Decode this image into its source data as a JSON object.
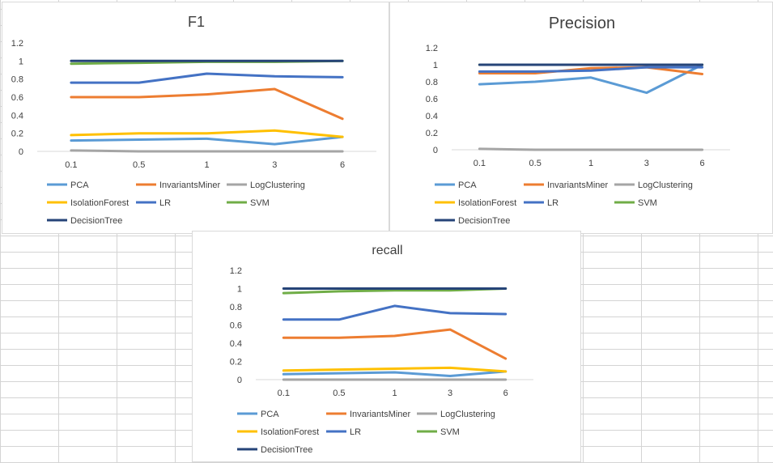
{
  "chart_data": [
    {
      "type": "line",
      "title": "F1",
      "categories": [
        "0.1",
        "0.5",
        "1",
        "3",
        "6"
      ],
      "ylim": [
        0,
        1.2
      ],
      "yticks": [
        "0",
        "0.2",
        "0.4",
        "0.6",
        "0.8",
        "1",
        "1.2"
      ],
      "grid": false,
      "legend_position": "bottom",
      "series": [
        {
          "name": "PCA",
          "color": "#5b9bd5",
          "values": [
            0.12,
            0.13,
            0.14,
            0.08,
            0.16
          ]
        },
        {
          "name": "InvariantsMiner",
          "color": "#ed7d31",
          "values": [
            0.6,
            0.6,
            0.63,
            0.69,
            0.36
          ]
        },
        {
          "name": "LogClustering",
          "color": "#a5a5a5",
          "values": [
            0.01,
            0.0,
            0.0,
            0.0,
            0.0
          ]
        },
        {
          "name": "IsolationForest",
          "color": "#ffc000",
          "values": [
            0.18,
            0.2,
            0.2,
            0.23,
            0.16
          ]
        },
        {
          "name": "LR",
          "color": "#4472c4",
          "values": [
            0.76,
            0.76,
            0.86,
            0.83,
            0.82
          ]
        },
        {
          "name": "SVM",
          "color": "#70ad47",
          "values": [
            0.97,
            0.98,
            0.99,
            0.99,
            1.0
          ]
        },
        {
          "name": "DecisionTree",
          "color": "#264478",
          "values": [
            1.0,
            1.0,
            1.0,
            1.0,
            1.0
          ]
        }
      ]
    },
    {
      "type": "line",
      "title": "Precision",
      "categories": [
        "0.1",
        "0.5",
        "1",
        "3",
        "6"
      ],
      "ylim": [
        0,
        1.2
      ],
      "yticks": [
        "0",
        "0.2",
        "0.4",
        "0.6",
        "0.8",
        "1",
        "1.2"
      ],
      "grid": false,
      "legend_position": "bottom",
      "series": [
        {
          "name": "PCA",
          "color": "#5b9bd5",
          "values": [
            0.77,
            0.8,
            0.85,
            0.67,
            1.0
          ]
        },
        {
          "name": "InvariantsMiner",
          "color": "#ed7d31",
          "values": [
            0.9,
            0.9,
            0.96,
            0.97,
            0.89
          ]
        },
        {
          "name": "LogClustering",
          "color": "#a5a5a5",
          "values": [
            0.01,
            0.0,
            0.0,
            0.0,
            0.0
          ]
        },
        {
          "name": "IsolationForest",
          "color": "#ffc000",
          "values": [
            1.0,
            1.0,
            1.0,
            1.0,
            1.0
          ]
        },
        {
          "name": "LR",
          "color": "#4472c4",
          "values": [
            0.92,
            0.92,
            0.93,
            0.97,
            0.97
          ]
        },
        {
          "name": "SVM",
          "color": "#70ad47",
          "values": [
            1.0,
            1.0,
            1.0,
            1.0,
            1.0
          ]
        },
        {
          "name": "DecisionTree",
          "color": "#264478",
          "values": [
            1.0,
            1.0,
            1.0,
            1.0,
            1.0
          ]
        }
      ]
    },
    {
      "type": "line",
      "title": "recall",
      "categories": [
        "0.1",
        "0.5",
        "1",
        "3",
        "6"
      ],
      "ylim": [
        0,
        1.2
      ],
      "yticks": [
        "0",
        "0.2",
        "0.4",
        "0.6",
        "0.8",
        "1",
        "1.2"
      ],
      "grid": false,
      "legend_position": "bottom",
      "series": [
        {
          "name": "PCA",
          "color": "#5b9bd5",
          "values": [
            0.06,
            0.07,
            0.08,
            0.04,
            0.09
          ]
        },
        {
          "name": "InvariantsMiner",
          "color": "#ed7d31",
          "values": [
            0.46,
            0.46,
            0.48,
            0.55,
            0.23
          ]
        },
        {
          "name": "LogClustering",
          "color": "#a5a5a5",
          "values": [
            0.0,
            0.0,
            0.0,
            0.0,
            0.0
          ]
        },
        {
          "name": "IsolationForest",
          "color": "#ffc000",
          "values": [
            0.1,
            0.11,
            0.12,
            0.13,
            0.09
          ]
        },
        {
          "name": "LR",
          "color": "#4472c4",
          "values": [
            0.66,
            0.66,
            0.81,
            0.73,
            0.72
          ]
        },
        {
          "name": "SVM",
          "color": "#70ad47",
          "values": [
            0.95,
            0.97,
            0.98,
            0.98,
            1.0
          ]
        },
        {
          "name": "DecisionTree",
          "color": "#264478",
          "values": [
            1.0,
            1.0,
            1.0,
            1.0,
            1.0
          ]
        }
      ]
    }
  ]
}
